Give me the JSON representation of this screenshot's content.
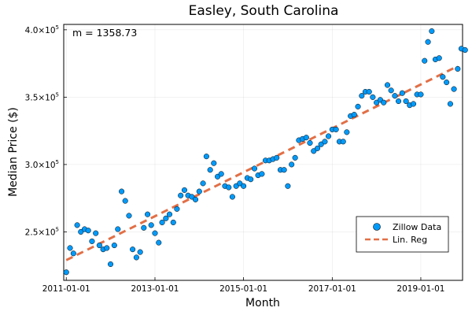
{
  "chart_data": {
    "type": "scatter",
    "title": "Easley, South Carolina",
    "xlabel": "Month",
    "ylabel": "Median Price ($)",
    "annotation": "m = 1358.73",
    "x_ticks": [
      "2011-01-01",
      "2013-01-01",
      "2015-01-01",
      "2017-01-01",
      "2019-01-01"
    ],
    "x_range": [
      "2010-12-11",
      "2019-12-11"
    ],
    "y_ticks": [
      {
        "value": 250000,
        "mantissa": "2.5×10",
        "exp": "5"
      },
      {
        "value": 300000,
        "mantissa": "3.0×10",
        "exp": "5"
      },
      {
        "value": 350000,
        "mantissa": "3.5×10",
        "exp": "5"
      },
      {
        "value": 400000,
        "mantissa": "4.0×10",
        "exp": "5"
      }
    ],
    "ylim": [
      214000,
      404000
    ],
    "grid": true,
    "legend_position": "bottom-right",
    "series": [
      {
        "name": "Zillow Data",
        "kind": "scatter",
        "color": "#009af9",
        "points": [
          [
            "2011-01-01",
            220000
          ],
          [
            "2011-02-01",
            238000
          ],
          [
            "2011-03-01",
            234000
          ],
          [
            "2011-04-01",
            255000
          ],
          [
            "2011-05-01",
            250000
          ],
          [
            "2011-06-01",
            252000
          ],
          [
            "2011-07-01",
            251000
          ],
          [
            "2011-08-01",
            243000
          ],
          [
            "2011-09-01",
            249000
          ],
          [
            "2011-10-01",
            240000
          ],
          [
            "2011-11-01",
            237000
          ],
          [
            "2011-12-01",
            238000
          ],
          [
            "2012-01-01",
            226000
          ],
          [
            "2012-02-01",
            240000
          ],
          [
            "2012-03-01",
            252000
          ],
          [
            "2012-04-01",
            280000
          ],
          [
            "2012-05-01",
            273000
          ],
          [
            "2012-06-01",
            262000
          ],
          [
            "2012-07-01",
            237000
          ],
          [
            "2012-08-01",
            231000
          ],
          [
            "2012-09-01",
            235000
          ],
          [
            "2012-10-01",
            253000
          ],
          [
            "2012-11-01",
            263000
          ],
          [
            "2012-12-01",
            255000
          ],
          [
            "2013-01-01",
            249000
          ],
          [
            "2013-02-01",
            242000
          ],
          [
            "2013-03-01",
            257000
          ],
          [
            "2013-04-01",
            260000
          ],
          [
            "2013-05-01",
            263000
          ],
          [
            "2013-06-01",
            257000
          ],
          [
            "2013-07-01",
            267000
          ],
          [
            "2013-08-01",
            277000
          ],
          [
            "2013-09-01",
            281000
          ],
          [
            "2013-10-01",
            277000
          ],
          [
            "2013-11-01",
            276000
          ],
          [
            "2013-12-01",
            274000
          ],
          [
            "2014-01-01",
            280000
          ],
          [
            "2014-02-01",
            286000
          ],
          [
            "2014-03-01",
            306000
          ],
          [
            "2014-04-01",
            296000
          ],
          [
            "2014-05-01",
            301000
          ],
          [
            "2014-06-01",
            291000
          ],
          [
            "2014-07-01",
            293000
          ],
          [
            "2014-08-01",
            284000
          ],
          [
            "2014-09-01",
            283000
          ],
          [
            "2014-10-01",
            276000
          ],
          [
            "2014-11-01",
            284000
          ],
          [
            "2014-12-01",
            286000
          ],
          [
            "2015-01-01",
            284000
          ],
          [
            "2015-02-01",
            290000
          ],
          [
            "2015-03-01",
            289000
          ],
          [
            "2015-04-01",
            297000
          ],
          [
            "2015-05-01",
            292000
          ],
          [
            "2015-06-01",
            293000
          ],
          [
            "2015-07-01",
            303000
          ],
          [
            "2015-08-01",
            303000
          ],
          [
            "2015-09-01",
            304000
          ],
          [
            "2015-10-01",
            305000
          ],
          [
            "2015-11-01",
            296000
          ],
          [
            "2015-12-01",
            296000
          ],
          [
            "2016-01-01",
            284000
          ],
          [
            "2016-02-01",
            300000
          ],
          [
            "2016-03-01",
            305000
          ],
          [
            "2016-04-01",
            318000
          ],
          [
            "2016-05-01",
            319000
          ],
          [
            "2016-06-01",
            320000
          ],
          [
            "2016-07-01",
            316000
          ],
          [
            "2016-08-01",
            310000
          ],
          [
            "2016-09-01",
            312000
          ],
          [
            "2016-10-01",
            315000
          ],
          [
            "2016-11-01",
            317000
          ],
          [
            "2016-12-01",
            321000
          ],
          [
            "2017-01-01",
            326000
          ],
          [
            "2017-02-01",
            326000
          ],
          [
            "2017-03-01",
            317000
          ],
          [
            "2017-04-01",
            317000
          ],
          [
            "2017-05-01",
            324000
          ],
          [
            "2017-06-01",
            336000
          ],
          [
            "2017-07-01",
            337000
          ],
          [
            "2017-08-01",
            343000
          ],
          [
            "2017-09-01",
            351000
          ],
          [
            "2017-10-01",
            354000
          ],
          [
            "2017-11-01",
            354000
          ],
          [
            "2017-12-01",
            350000
          ],
          [
            "2018-01-01",
            346000
          ],
          [
            "2018-02-01",
            348000
          ],
          [
            "2018-03-01",
            346000
          ],
          [
            "2018-04-01",
            359000
          ],
          [
            "2018-05-01",
            355000
          ],
          [
            "2018-06-01",
            351000
          ],
          [
            "2018-07-01",
            347000
          ],
          [
            "2018-08-01",
            353000
          ],
          [
            "2018-09-01",
            347000
          ],
          [
            "2018-10-01",
            344000
          ],
          [
            "2018-11-01",
            345000
          ],
          [
            "2018-12-01",
            352000
          ],
          [
            "2019-01-01",
            352000
          ],
          [
            "2019-02-01",
            377000
          ],
          [
            "2019-03-01",
            391000
          ],
          [
            "2019-04-01",
            399000
          ],
          [
            "2019-05-01",
            378000
          ],
          [
            "2019-06-01",
            379000
          ],
          [
            "2019-07-01",
            365000
          ],
          [
            "2019-08-01",
            361000
          ],
          [
            "2019-09-01",
            345000
          ],
          [
            "2019-10-01",
            356000
          ],
          [
            "2019-11-01",
            371000
          ],
          [
            "2019-12-01",
            386000
          ],
          [
            "2020-01-01",
            385000
          ]
        ]
      },
      {
        "name": "Lin. Reg",
        "kind": "line",
        "style": "dashed",
        "color": "#e26f46",
        "points": [
          [
            "2011-01-01",
            229000
          ],
          [
            "2019-11-01",
            373000
          ]
        ]
      }
    ]
  },
  "colors": {
    "scatter": "#009af9",
    "line": "#e26f46",
    "marker_edge": "#000000"
  }
}
